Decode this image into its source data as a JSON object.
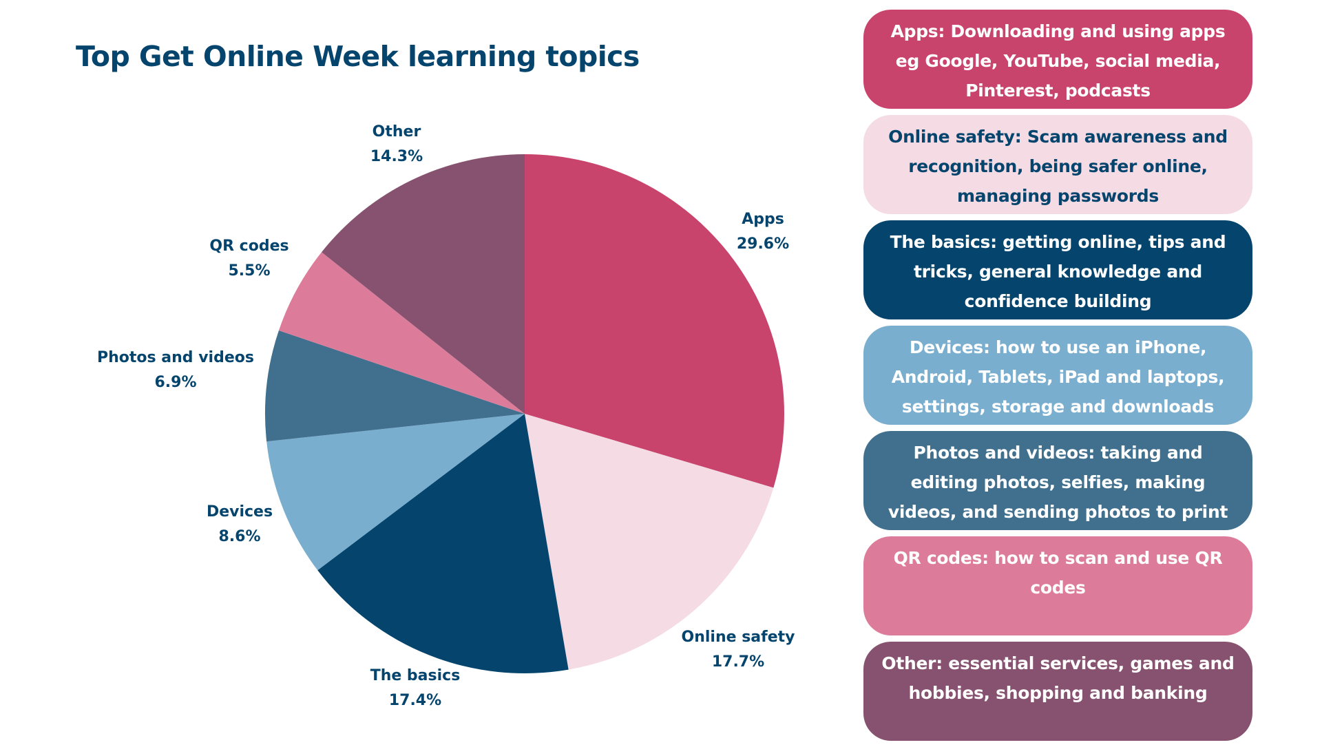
{
  "chart_data": {
    "type": "pie",
    "title": "Top Get Online Week learning topics",
    "slices": [
      {
        "label": "Apps",
        "value": 29.6,
        "value_label": "29.6%",
        "color": "#c9446c"
      },
      {
        "label": "Online safety",
        "value": 17.7,
        "value_label": "17.7%",
        "color": "#f4dbe4"
      },
      {
        "label": "The basics",
        "value": 17.4,
        "value_label": "17.4%",
        "color": "#05456d"
      },
      {
        "label": "Devices",
        "value": 8.6,
        "value_label": "8.6%",
        "color": "#7aaecf"
      },
      {
        "label": "Photos and videos",
        "value": 6.9,
        "value_label": "6.9%",
        "color": "#41708e"
      },
      {
        "label": "QR codes",
        "value": 5.5,
        "value_label": "5.5%",
        "color": "#dc7c9a"
      },
      {
        "label": "Other",
        "value": 14.3,
        "value_label": "14.3%",
        "color": "#87526f"
      }
    ],
    "start_angle": "12 o'clock",
    "direction": "clockwise"
  },
  "legend": [
    {
      "text": "Apps: Downloading and using apps eg Google, YouTube, social media, Pinterest, podcasts",
      "bg": "#c9446c",
      "fg": "#ffffff"
    },
    {
      "text": "Online safety: Scam awareness and recognition, being safer online, managing passwords",
      "bg": "#f4dbe4",
      "fg": "#05456d"
    },
    {
      "text": "The basics: getting online, tips and tricks, general knowledge and confidence building",
      "bg": "#05456d",
      "fg": "#ffffff"
    },
    {
      "text": "Devices: how to use an iPhone, Android, Tablets, iPad and laptops, settings, storage and downloads",
      "bg": "#7aaecf",
      "fg": "#ffffff"
    },
    {
      "text": "Photos and videos: taking and editing photos, selfies, making videos, and sending photos to print",
      "bg": "#41708e",
      "fg": "#ffffff"
    },
    {
      "text": "QR codes: how to scan and use QR codes",
      "bg": "#dc7c9a",
      "fg": "#ffffff"
    },
    {
      "text": "Other: essential services, games and hobbies, shopping and banking",
      "bg": "#87526f",
      "fg": "#ffffff"
    }
  ],
  "colors": {
    "title": "#05456d",
    "labels": "#05456d"
  }
}
